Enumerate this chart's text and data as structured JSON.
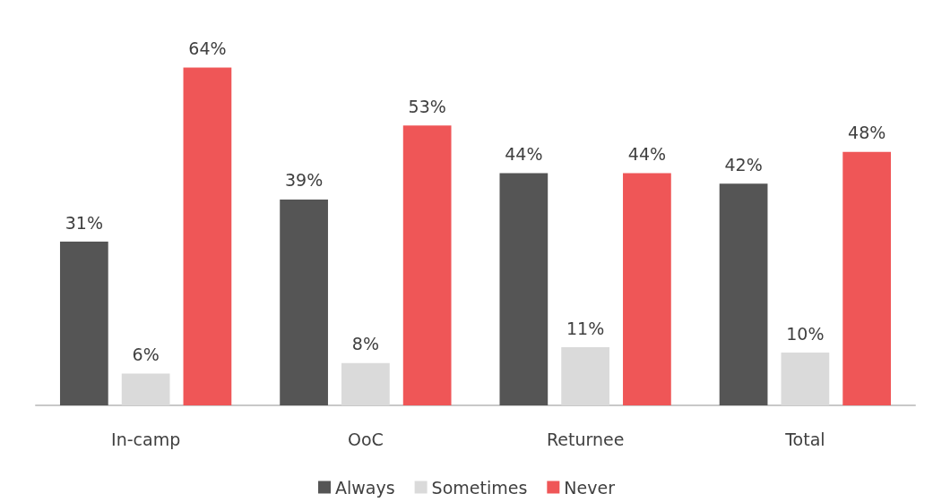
{
  "chart_data": {
    "type": "bar",
    "categories": [
      "In-camp",
      "OoC",
      "Returnee",
      "Total"
    ],
    "series": [
      {
        "name": "Always",
        "color": "#555555",
        "values": [
          31,
          39,
          44,
          42
        ],
        "value_labels": [
          "31%",
          "39%",
          "44%",
          "42%"
        ]
      },
      {
        "name": "Sometimes",
        "color": "#dadada",
        "values": [
          6,
          8,
          11,
          10
        ],
        "value_labels": [
          "6%",
          "8%",
          "11%",
          "10%"
        ]
      },
      {
        "name": "Never",
        "color": "#ef5657",
        "values": [
          64,
          53,
          44,
          48
        ],
        "value_labels": [
          "64%",
          "53%",
          "44%",
          "48%"
        ]
      }
    ],
    "legend": "bottom"
  }
}
